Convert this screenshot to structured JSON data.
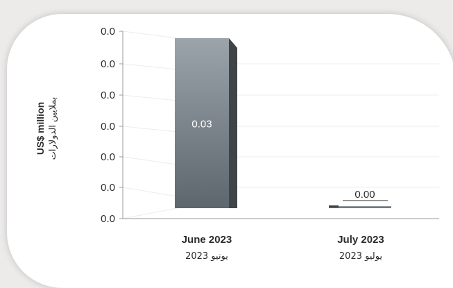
{
  "chart_data": {
    "type": "bar",
    "categories": [
      "June 2023",
      "July 2023"
    ],
    "categories_ar": [
      "يونيو 2023",
      "يوليو 2023"
    ],
    "values": [
      0.03,
      0.0
    ],
    "value_labels": [
      "0.03",
      "0.00"
    ],
    "ylabel": "US$ million",
    "ylabel_ar": "بملايين الدولارات",
    "y_tick_labels": [
      "0.0",
      "0.0",
      "0.0",
      "0.0",
      "0.0",
      "0.0",
      "0.0"
    ],
    "ylim": [
      0,
      0.03
    ],
    "grid": true,
    "colors": {
      "bar_front": "#8e979f",
      "bar_side": "#3f4448",
      "grid": "#ececec",
      "axis": "#9a9a9a"
    }
  }
}
